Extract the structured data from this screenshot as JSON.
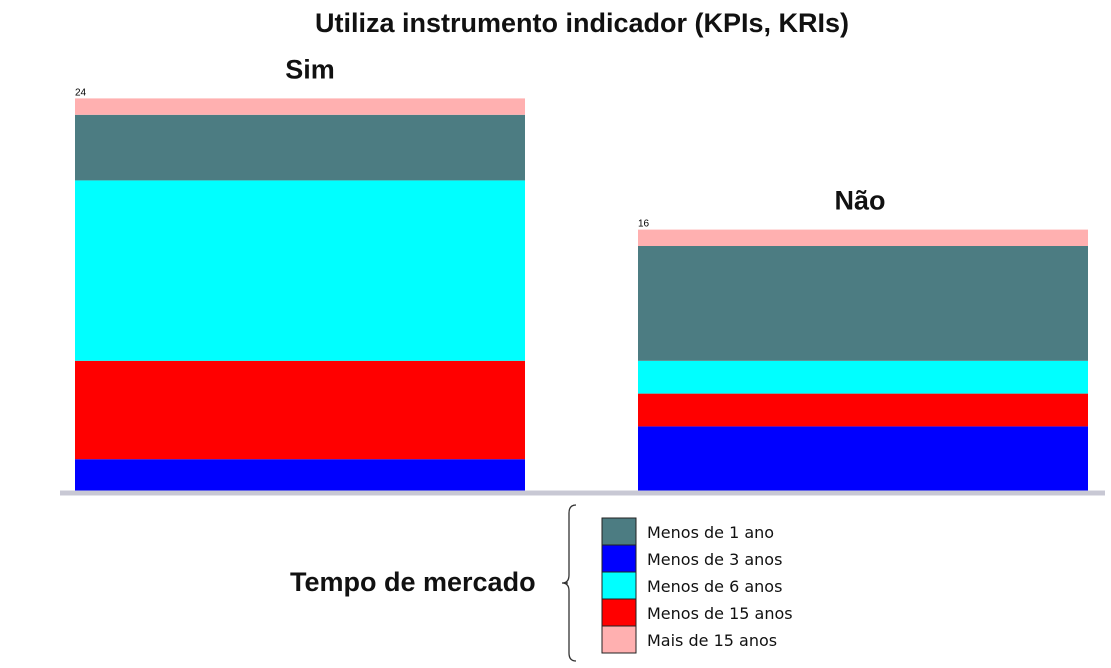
{
  "chart_data": {
    "type": "bar",
    "stacked": true,
    "title": "Utiliza instrumento indicador (KPIs, KRIs)",
    "categories": [
      "Sim",
      "Não"
    ],
    "totals": [
      "24",
      "16"
    ],
    "series": [
      {
        "name": "Menos de 3 anos",
        "color": "#0000ff",
        "values": [
          2,
          4
        ]
      },
      {
        "name": "Menos de 15 anos",
        "color": "#ff0000",
        "values": [
          6,
          2
        ]
      },
      {
        "name": "Menos de 6 anos",
        "color": "#00ffff",
        "values": [
          11,
          2
        ]
      },
      {
        "name": "Menos de 1 ano",
        "color": "#4c7c82",
        "values": [
          4,
          7
        ]
      },
      {
        "name": "Mais de 15 anos",
        "color": "#ffb0b0",
        "values": [
          1,
          1
        ]
      }
    ],
    "ylim": [
      0,
      24
    ],
    "legend": {
      "title": "Tempo de mercado",
      "placement": "bottom",
      "order": [
        "Menos de 1 ano",
        "Menos de 3 anos",
        "Menos de 6 anos",
        "Menos de 15 anos",
        "Mais de 15 anos"
      ]
    },
    "baseline_color": "#c8c8d4"
  }
}
